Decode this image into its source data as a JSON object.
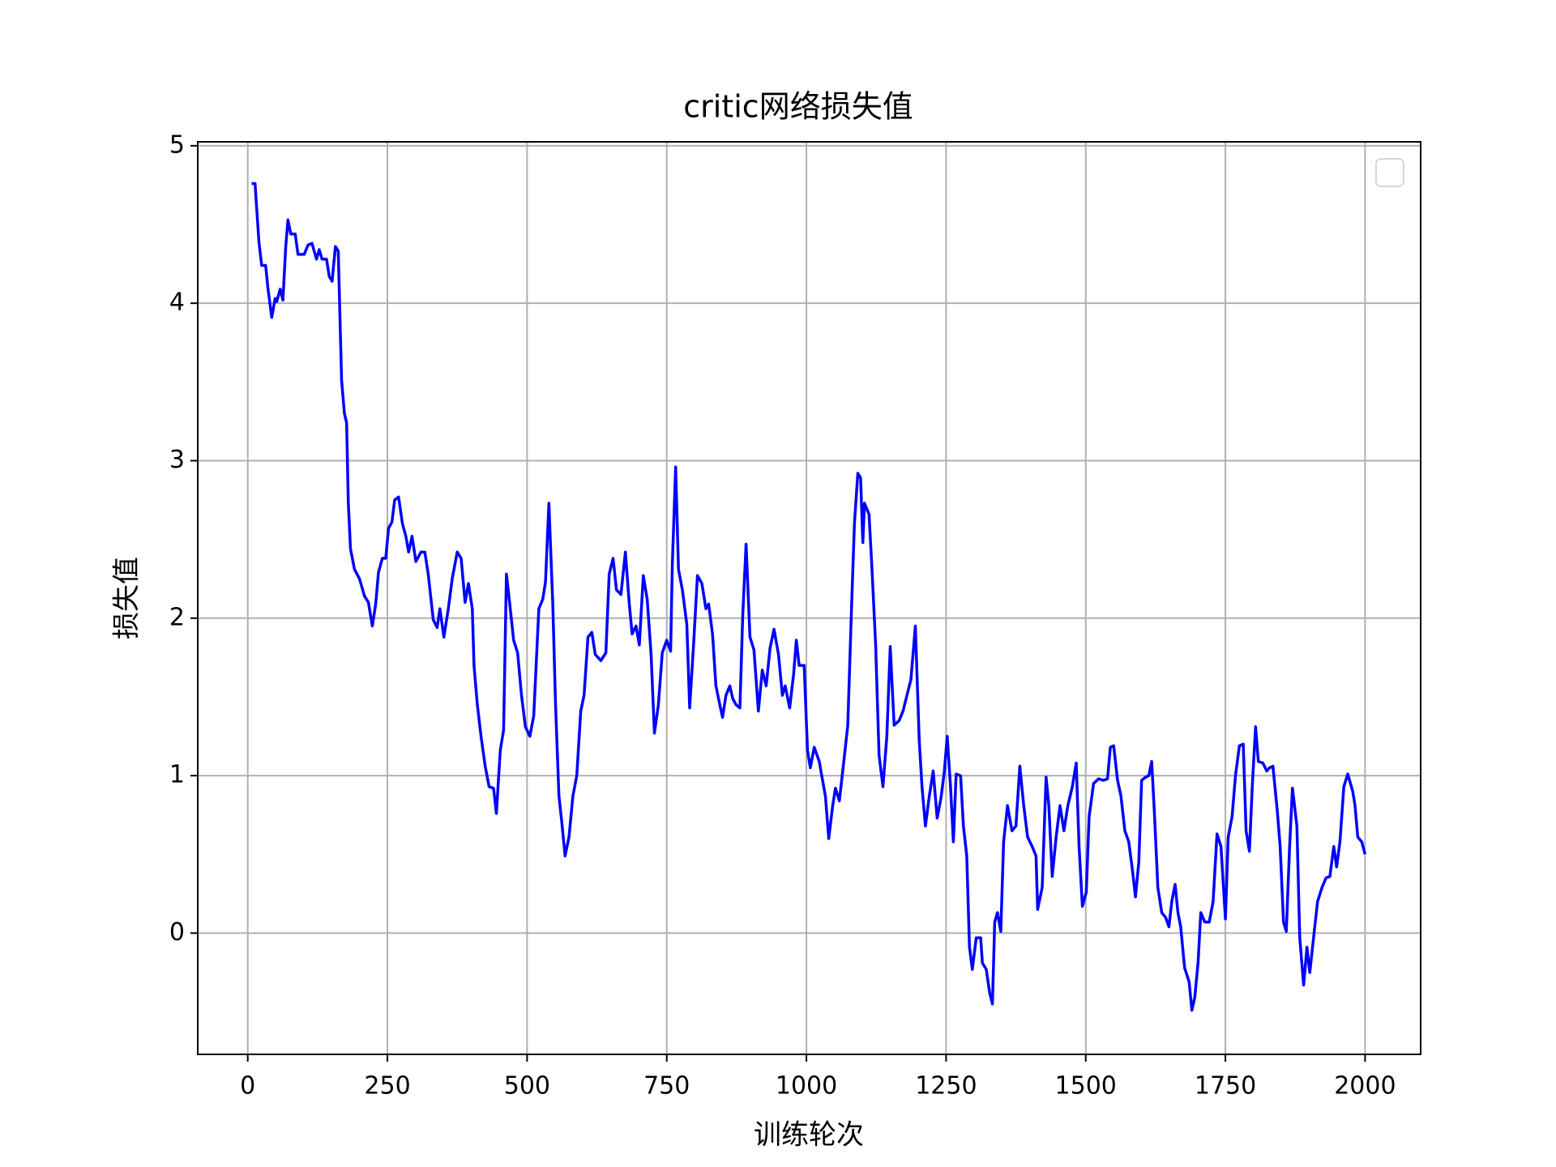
{
  "chart_data": {
    "type": "line",
    "title": "critic网络损失值",
    "x_label": "训练轮次",
    "y_label": "损失值",
    "x": [
      7,
      13,
      20,
      25,
      32,
      36,
      43,
      49,
      52,
      58,
      63,
      68,
      72,
      77,
      85,
      90,
      101,
      108,
      115,
      123,
      128,
      133,
      141,
      146,
      151,
      157,
      162,
      168,
      173,
      177,
      180,
      184,
      191,
      200,
      209,
      216,
      223,
      229,
      234,
      241,
      247,
      252,
      258,
      263,
      270,
      277,
      283,
      288,
      294,
      301,
      310,
      317,
      323,
      332,
      339,
      344,
      351,
      359,
      366,
      375,
      382,
      389,
      395,
      402,
      405,
      411,
      418,
      425,
      432,
      440,
      445,
      452,
      458,
      463,
      469,
      476,
      483,
      490,
      497,
      505,
      512,
      521,
      528,
      533,
      539,
      546,
      551,
      557,
      562,
      568,
      575,
      582,
      589,
      596,
      602,
      609,
      616,
      622,
      632,
      641,
      647,
      654,
      660,
      668,
      676,
      683,
      688,
      695,
      701,
      708,
      715,
      722,
      728,
      735,
      742,
      750,
      757,
      760,
      766,
      771,
      778,
      786,
      791,
      798,
      805,
      813,
      820,
      825,
      832,
      838,
      845,
      850,
      856,
      863,
      868,
      874,
      881,
      886,
      892,
      899,
      906,
      914,
      921,
      928,
      935,
      942,
      950,
      957,
      962,
      970,
      977,
      982,
      987,
      996,
      1002,
      1007,
      1014,
      1023,
      1029,
      1034,
      1040,
      1047,
      1052,
      1059,
      1067,
      1074,
      1081,
      1086,
      1092,
      1097,
      1101,
      1104,
      1112,
      1117,
      1124,
      1130,
      1137,
      1144,
      1150,
      1157,
      1166,
      1173,
      1180,
      1187,
      1195,
      1202,
      1207,
      1213,
      1220,
      1227,
      1234,
      1241,
      1247,
      1252,
      1258,
      1263,
      1268,
      1276,
      1281,
      1287,
      1292,
      1297,
      1304,
      1312,
      1315,
      1322,
      1328,
      1333,
      1337,
      1342,
      1348,
      1353,
      1360,
      1368,
      1375,
      1382,
      1389,
      1396,
      1404,
      1411,
      1414,
      1422,
      1429,
      1434,
      1440,
      1447,
      1454,
      1461,
      1468,
      1476,
      1483,
      1488,
      1494,
      1501,
      1506,
      1514,
      1523,
      1532,
      1539,
      1544,
      1550,
      1557,
      1563,
      1570,
      1577,
      1584,
      1589,
      1595,
      1600,
      1607,
      1613,
      1618,
      1623,
      1629,
      1636,
      1643,
      1649,
      1654,
      1660,
      1665,
      1670,
      1677,
      1685,
      1690,
      1695,
      1701,
      1706,
      1713,
      1721,
      1728,
      1735,
      1742,
      1750,
      1755,
      1762,
      1768,
      1775,
      1782,
      1787,
      1793,
      1798,
      1804,
      1809,
      1817,
      1824,
      1829,
      1835,
      1843,
      1848,
      1854,
      1859,
      1865,
      1870,
      1878,
      1883,
      1890,
      1896,
      1901,
      1909,
      1915,
      1923,
      1930,
      1937,
      1944,
      1949,
      1955,
      1962,
      1969,
      1978,
      1982,
      1987,
      1994,
      2000
    ],
    "series": [
      {
        "color": "#0000ff",
        "values": [
          4.76,
          4.76,
          4.39,
          4.24,
          4.24,
          4.1,
          3.91,
          4.03,
          4.01,
          4.09,
          4.02,
          4.36,
          4.53,
          4.44,
          4.44,
          4.31,
          4.31,
          4.37,
          4.38,
          4.28,
          4.34,
          4.28,
          4.28,
          4.17,
          4.14,
          4.36,
          4.33,
          3.51,
          3.3,
          3.24,
          2.73,
          2.44,
          2.31,
          2.25,
          2.14,
          2.1,
          1.95,
          2.09,
          2.29,
          2.38,
          2.38,
          2.57,
          2.61,
          2.75,
          2.77,
          2.6,
          2.52,
          2.42,
          2.52,
          2.36,
          2.42,
          2.42,
          2.28,
          1.99,
          1.94,
          2.06,
          1.88,
          2.06,
          2.25,
          2.42,
          2.38,
          2.1,
          2.22,
          2.06,
          1.7,
          1.45,
          1.24,
          1.06,
          0.93,
          0.92,
          0.76,
          1.16,
          1.29,
          2.28,
          2.09,
          1.86,
          1.78,
          1.51,
          1.31,
          1.25,
          1.38,
          2.06,
          2.12,
          2.23,
          2.73,
          2.09,
          1.45,
          0.87,
          0.71,
          0.49,
          0.61,
          0.87,
          1.0,
          1.41,
          1.51,
          1.88,
          1.91,
          1.77,
          1.73,
          1.78,
          2.28,
          2.38,
          2.18,
          2.15,
          2.42,
          2.09,
          1.9,
          1.95,
          1.83,
          2.27,
          2.12,
          1.77,
          1.27,
          1.45,
          1.78,
          1.86,
          1.79,
          2.34,
          2.96,
          2.31,
          2.18,
          1.96,
          1.43,
          1.83,
          2.27,
          2.22,
          2.06,
          2.09,
          1.9,
          1.57,
          1.45,
          1.37,
          1.51,
          1.57,
          1.49,
          1.45,
          1.43,
          2.02,
          2.47,
          1.88,
          1.8,
          1.41,
          1.67,
          1.57,
          1.81,
          1.93,
          1.77,
          1.51,
          1.57,
          1.43,
          1.64,
          1.86,
          1.7,
          1.7,
          1.16,
          1.05,
          1.18,
          1.09,
          0.97,
          0.87,
          0.6,
          0.81,
          0.92,
          0.84,
          1.09,
          1.32,
          2.09,
          2.6,
          2.92,
          2.89,
          2.48,
          2.73,
          2.66,
          2.34,
          1.83,
          1.13,
          0.93,
          1.25,
          1.82,
          1.32,
          1.35,
          1.41,
          1.51,
          1.61,
          1.95,
          1.22,
          0.93,
          0.68,
          0.87,
          1.03,
          0.73,
          0.86,
          1.03,
          1.25,
          0.93,
          0.58,
          1.01,
          1.0,
          0.68,
          0.49,
          -0.09,
          -0.23,
          -0.03,
          -0.03,
          -0.19,
          -0.23,
          -0.38,
          -0.45,
          0.07,
          0.13,
          0.01,
          0.58,
          0.81,
          0.65,
          0.68,
          1.06,
          0.81,
          0.61,
          0.55,
          0.49,
          0.15,
          0.29,
          0.99,
          0.81,
          0.36,
          0.61,
          0.81,
          0.65,
          0.81,
          0.93,
          1.08,
          0.55,
          0.17,
          0.26,
          0.74,
          0.95,
          0.98,
          0.97,
          0.98,
          1.18,
          1.19,
          0.97,
          0.87,
          0.65,
          0.58,
          0.39,
          0.23,
          0.45,
          0.97,
          0.99,
          1.0,
          1.09,
          0.76,
          0.29,
          0.13,
          0.1,
          0.04,
          0.2,
          0.31,
          0.13,
          0.04,
          -0.22,
          -0.31,
          -0.49,
          -0.41,
          -0.19,
          0.13,
          0.07,
          0.07,
          0.2,
          0.63,
          0.55,
          0.09,
          0.61,
          0.74,
          1.0,
          1.19,
          1.2,
          0.65,
          0.52,
          0.93,
          1.31,
          1.09,
          1.08,
          1.03,
          1.05,
          1.06,
          0.77,
          0.55,
          0.07,
          0.01,
          0.55,
          0.92,
          0.68,
          -0.03,
          -0.33,
          -0.09,
          -0.25,
          0.01,
          0.2,
          0.29,
          0.35,
          0.36,
          0.55,
          0.42,
          0.58,
          0.93,
          1.01,
          0.9,
          0.81,
          0.61,
          0.58,
          0.5
        ]
      }
    ],
    "xlim": [
      -89.5,
      2099.5
    ],
    "ylim": [
      -0.77,
      5.025
    ],
    "xticks": [
      0,
      250,
      500,
      750,
      1000,
      1250,
      1500,
      1750,
      2000
    ],
    "yticks": [
      0,
      1,
      2,
      3,
      4,
      5
    ],
    "grid": true,
    "legend": "upper right"
  }
}
